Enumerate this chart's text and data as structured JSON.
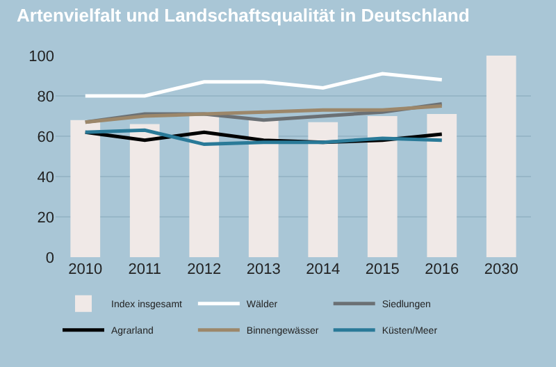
{
  "chart_data": {
    "type": "bar",
    "title": "Artenvielfalt und Landschaftsqualität in Deutschland",
    "categories": [
      "2010",
      "2011",
      "2012",
      "2013",
      "2014",
      "2015",
      "2016",
      "2030"
    ],
    "series": [
      {
        "name": "Index insgesamt",
        "color": "#f0e9e7",
        "values": [
          68,
          66,
          70,
          68,
          67,
          70,
          71,
          100
        ]
      },
      {
        "name": "Wälder",
        "type": "line",
        "color": "#ffffff",
        "values": [
          80,
          80,
          87,
          87,
          84,
          91,
          88,
          null
        ]
      },
      {
        "name": "Siedlungen",
        "type": "line",
        "color": "#6b7074",
        "values": [
          67,
          71,
          71,
          68,
          70,
          72,
          76,
          null
        ]
      },
      {
        "name": "Agrarland",
        "type": "line",
        "color": "#000000",
        "values": [
          62,
          58,
          62,
          58,
          57,
          58,
          61,
          null
        ]
      },
      {
        "name": "Binnengewässer",
        "type": "line",
        "color": "#9c876a",
        "values": [
          67,
          70,
          71,
          72,
          73,
          73,
          75,
          null
        ]
      },
      {
        "name": "Küsten/Meer",
        "type": "line",
        "color": "#2a7a98",
        "values": [
          62,
          63,
          56,
          57,
          57,
          59,
          58,
          null
        ]
      }
    ],
    "ylim": [
      0,
      100
    ],
    "yticks": [
      0,
      20,
      40,
      60,
      80,
      100
    ],
    "grid": "y",
    "legend": "bottom"
  }
}
